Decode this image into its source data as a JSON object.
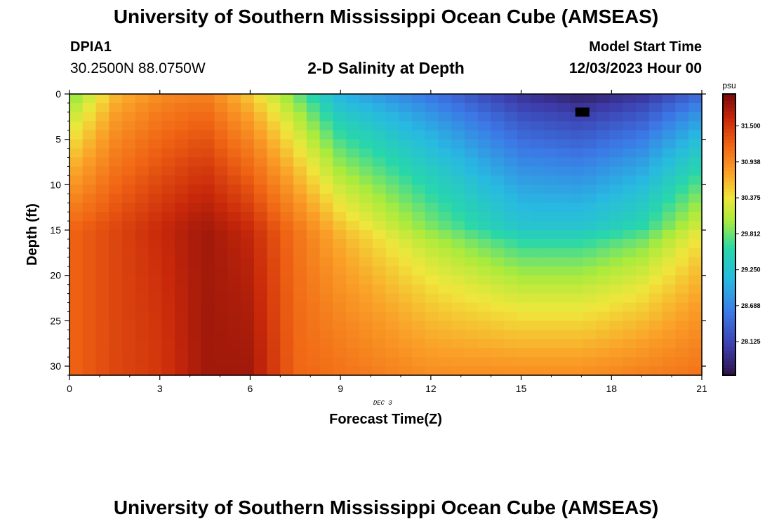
{
  "header": {
    "title": "University of Southern Mississippi Ocean Cube (AMSEAS)",
    "station_id": "DPIA1",
    "coordinates": "30.2500N  88.0750W",
    "subtitle": "2-D Salinity at Depth",
    "model_start_label": "Model Start Time",
    "model_start_value": "12/03/2023 Hour 00"
  },
  "footer": {
    "title": "University of Southern Mississippi Ocean Cube (AMSEAS)"
  },
  "chart_data": {
    "type": "heatmap",
    "title": "2-D Salinity at Depth",
    "xlabel": "Forecast Time(Z)",
    "ylabel": "Depth (ft)",
    "date_label": "DEC 3",
    "xlim": [
      0,
      21
    ],
    "ylim": [
      0,
      31
    ],
    "x_ticks": [
      0,
      3,
      6,
      9,
      12,
      15,
      18,
      21
    ],
    "y_ticks": [
      0,
      5,
      10,
      15,
      20,
      25,
      30
    ],
    "colorbar": {
      "units": "psu",
      "min": 27.6,
      "max": 32.0,
      "ticks": [
        "31.500",
        "30.938",
        "30.375",
        "29.812",
        "29.250",
        "28.688",
        "28.125"
      ]
    },
    "salinity_profile": [
      {
        "hour": 0,
        "surface": 29.8,
        "mid": 31.2,
        "bottom": 31.2
      },
      {
        "hour": 1.5,
        "surface": 30.6,
        "mid": 31.4,
        "bottom": 31.4
      },
      {
        "hour": 3,
        "surface": 30.9,
        "mid": 31.6,
        "bottom": 31.5
      },
      {
        "hour": 4.5,
        "surface": 31.0,
        "mid": 31.8,
        "bottom": 31.8
      },
      {
        "hour": 6,
        "surface": 30.5,
        "mid": 31.6,
        "bottom": 31.8
      },
      {
        "hour": 7.5,
        "surface": 29.8,
        "mid": 31.1,
        "bottom": 31.2
      },
      {
        "hour": 9,
        "surface": 29.0,
        "mid": 30.6,
        "bottom": 31.1
      },
      {
        "hour": 12,
        "surface": 28.5,
        "mid": 29.9,
        "bottom": 30.9
      },
      {
        "hour": 15,
        "surface": 27.9,
        "mid": 29.3,
        "bottom": 30.9
      },
      {
        "hour": 17,
        "surface": 27.7,
        "mid": 29.3,
        "bottom": 30.9
      },
      {
        "hour": 19,
        "surface": 27.9,
        "mid": 29.6,
        "bottom": 31.0
      },
      {
        "hour": 21,
        "surface": 28.4,
        "mid": 30.3,
        "bottom": 31.1
      }
    ],
    "colors": {
      "frame": "#000000",
      "grid": "none"
    }
  }
}
